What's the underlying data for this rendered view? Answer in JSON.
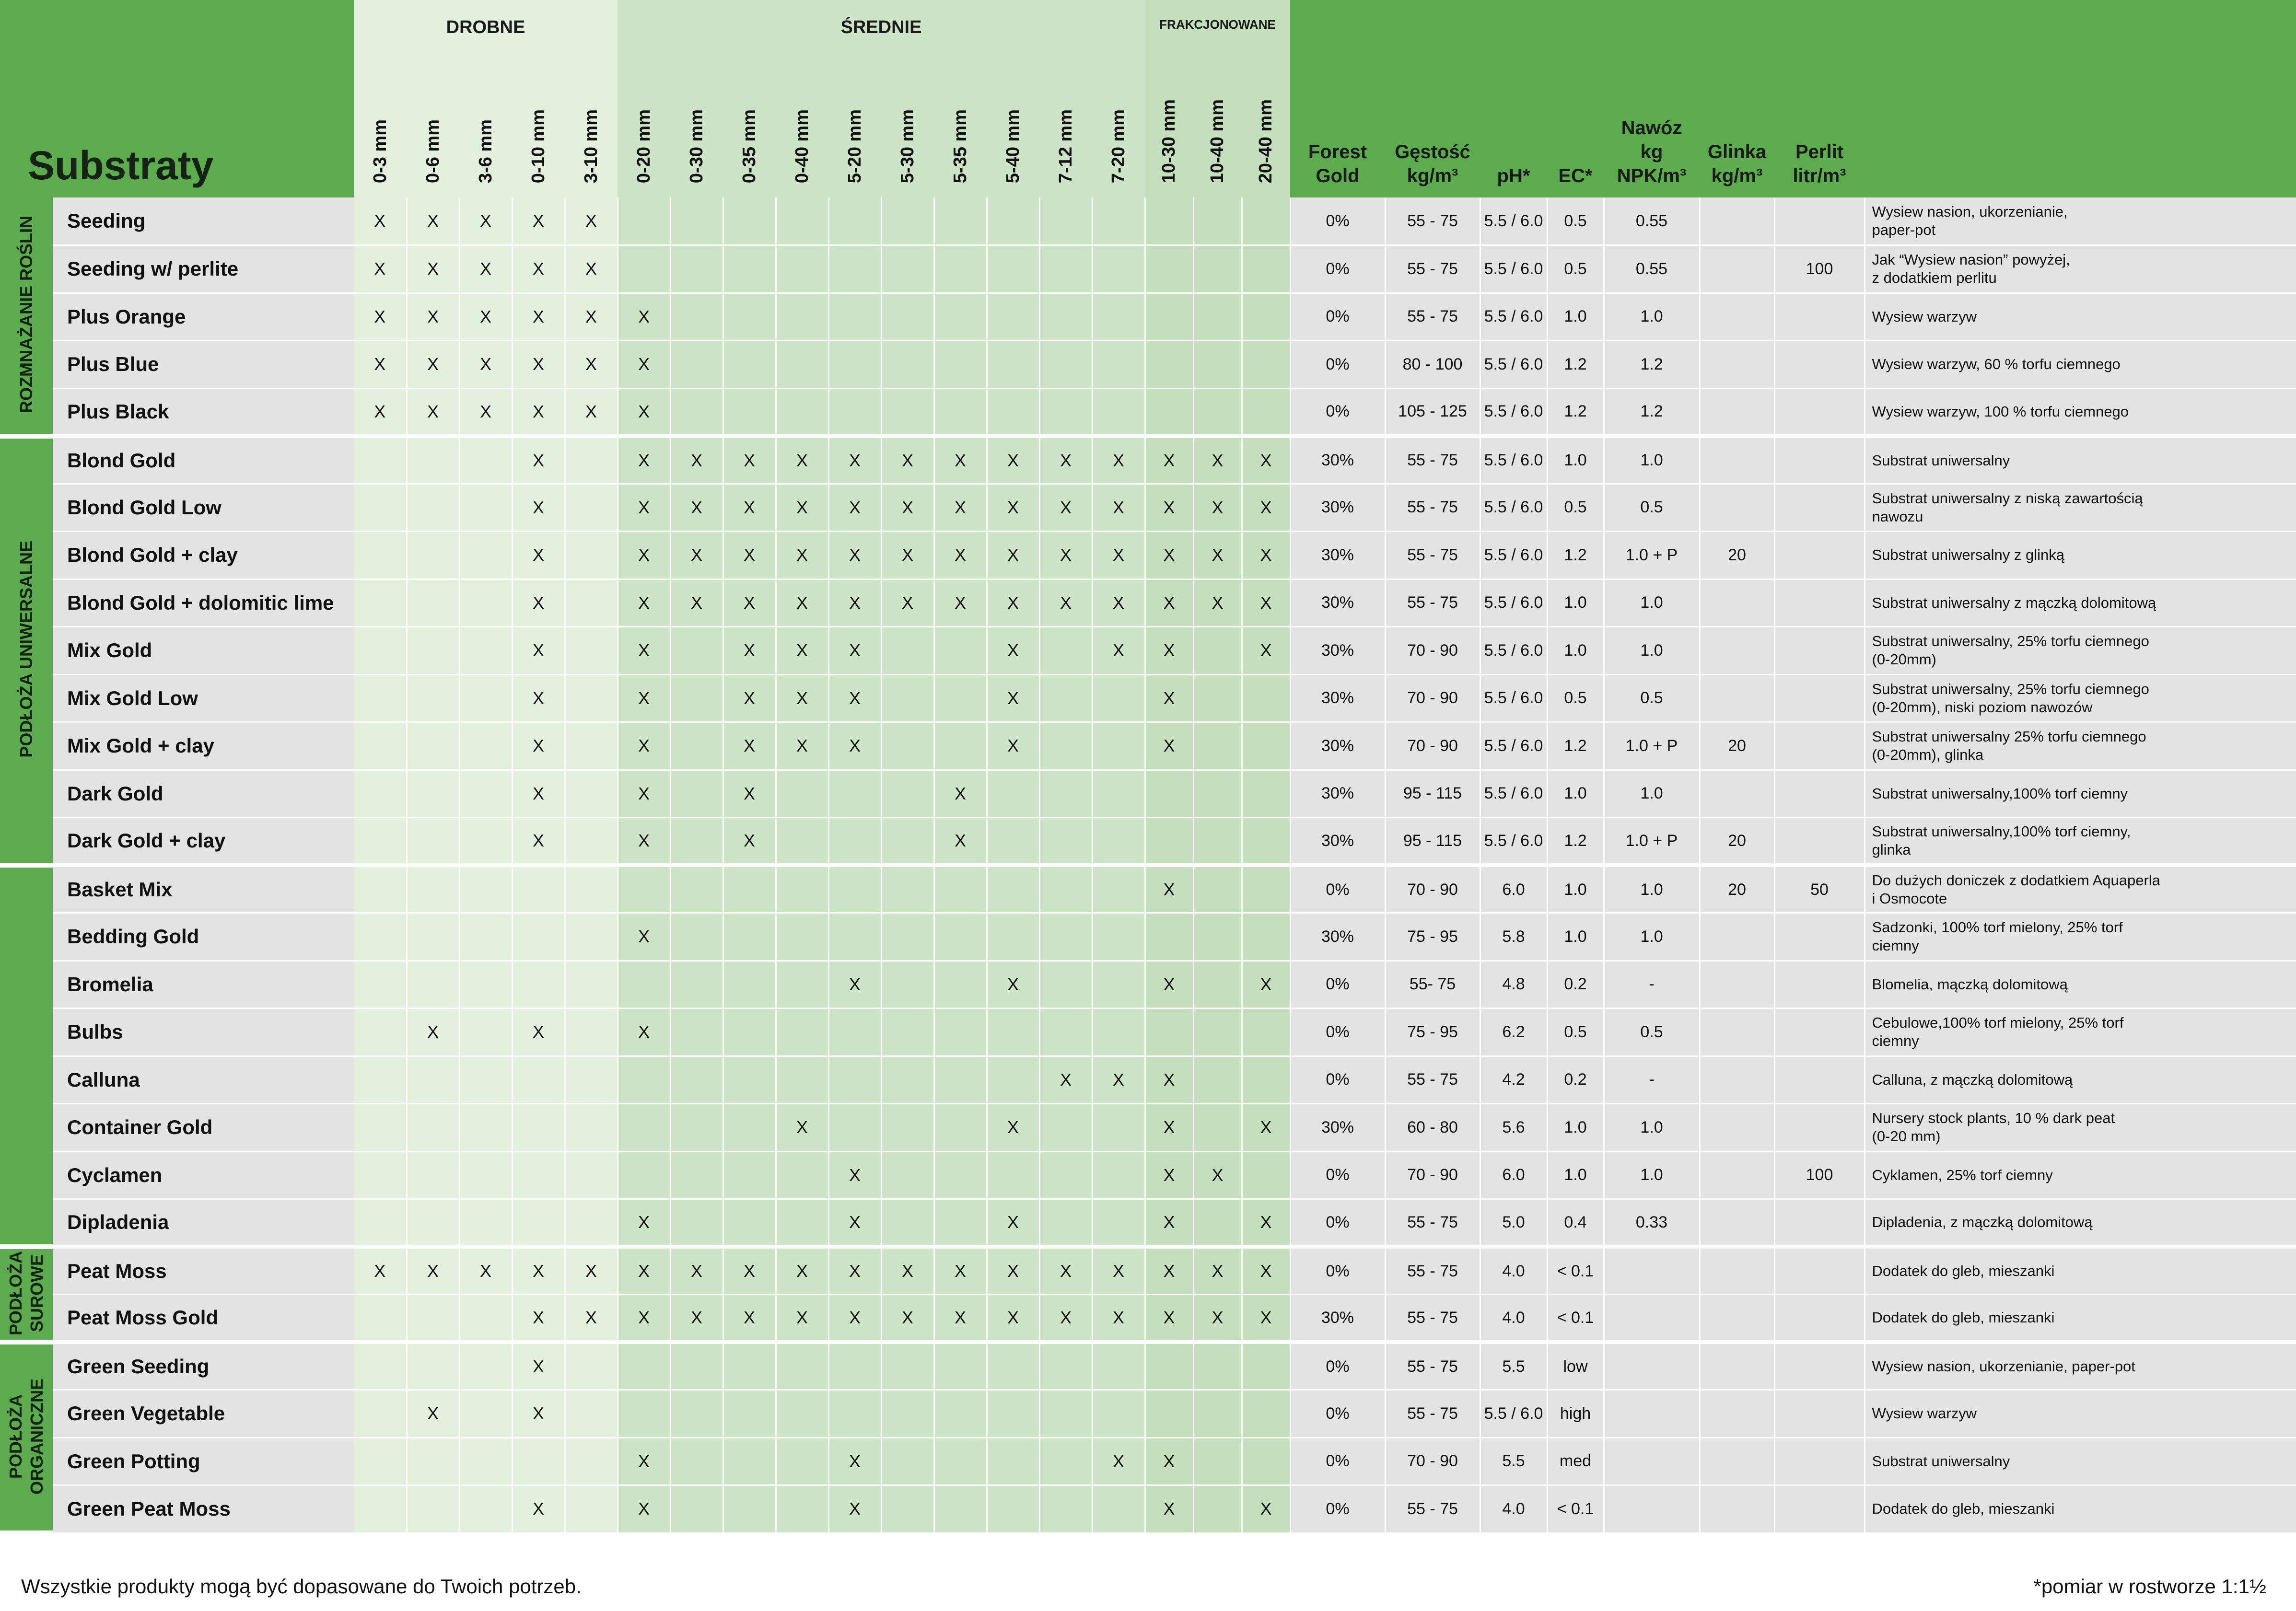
{
  "title": "Substraty",
  "groups": {
    "drobne": "DROBNE",
    "srednie": "ŚREDNIE",
    "frakcjonowane": "FRAKCJONOWANE"
  },
  "sizes": [
    "0-3 mm",
    "0-6 mm",
    "3-6 mm",
    "0-10 mm",
    "3-10 mm",
    "0-20 mm",
    "0-30 mm",
    "0-35 mm",
    "0-40 mm",
    "5-20 mm",
    "5-30 mm",
    "5-35 mm",
    "5-40 mm",
    "7-12 mm",
    "7-20 mm",
    "10-30 mm",
    "10-40 mm",
    "20-40 mm"
  ],
  "prop_headers": [
    "Forest\nGold",
    "Gęstość\nkg/m³",
    "pH*",
    "EC*",
    "Nawóz\nkg NPK/m³",
    "Glinka\nkg/m³",
    "Perlit\nlitr/m³"
  ],
  "categories": [
    {
      "label": "ROZMNAŻANIE ROŚLIN",
      "rows": [
        {
          "name": "Seeding",
          "x": "XXXXX.............",
          "fg": "0%",
          "density": "55 - 75",
          "ph": "5.5 / 6.0",
          "ec": "0.5",
          "npk": "0.55",
          "clay": "",
          "perlite": "",
          "desc": "Wysiew nasion, ukorzenianie,\npaper-pot"
        },
        {
          "name": "Seeding w/ perlite",
          "x": "XXXXX.............",
          "fg": "0%",
          "density": "55 - 75",
          "ph": "5.5 / 6.0",
          "ec": "0.5",
          "npk": "0.55",
          "clay": "",
          "perlite": "100",
          "desc": "Jak “Wysiew nasion” powyżej,\nz dodatkiem perlitu"
        },
        {
          "name": "Plus Orange",
          "x": "XXXXXX............",
          "fg": "0%",
          "density": "55 - 75",
          "ph": "5.5 / 6.0",
          "ec": "1.0",
          "npk": "1.0",
          "clay": "",
          "perlite": "",
          "desc": "Wysiew warzyw"
        },
        {
          "name": "Plus Blue",
          "x": "XXXXXX............",
          "fg": "0%",
          "density": "80 - 100",
          "ph": "5.5 / 6.0",
          "ec": "1.2",
          "npk": "1.2",
          "clay": "",
          "perlite": "",
          "desc": "Wysiew warzyw, 60 % torfu ciemnego"
        },
        {
          "name": "Plus Black",
          "x": "XXXXXX............",
          "fg": "0%",
          "density": "105 - 125",
          "ph": "5.5 / 6.0",
          "ec": "1.2",
          "npk": "1.2",
          "clay": "",
          "perlite": "",
          "desc": "Wysiew warzyw, 100 % torfu ciemnego"
        }
      ]
    },
    {
      "label": "PODŁOŻA UNIWERSALNE",
      "rows": [
        {
          "name": "Blond Gold",
          "x": "...X.XXXXXXXXXXXXX",
          "fg": "30%",
          "density": "55 - 75",
          "ph": "5.5 / 6.0",
          "ec": "1.0",
          "npk": "1.0",
          "clay": "",
          "perlite": "",
          "desc": "Substrat uniwersalny"
        },
        {
          "name": "Blond Gold Low",
          "x": "...X.XXXXXXXXXXXXX",
          "fg": "30%",
          "density": "55 - 75",
          "ph": "5.5 / 6.0",
          "ec": "0.5",
          "npk": "0.5",
          "clay": "",
          "perlite": "",
          "desc": "Substrat uniwersalny z niską zawartością\nnawozu"
        },
        {
          "name": "Blond Gold + clay",
          "x": "...X.XXXXXXXXXXXXX",
          "fg": "30%",
          "density": "55 - 75",
          "ph": "5.5 / 6.0",
          "ec": "1.2",
          "npk": "1.0 + P",
          "clay": "20",
          "perlite": "",
          "desc": "Substrat uniwersalny z glinką"
        },
        {
          "name": "Blond Gold + dolomitic lime",
          "x": "...X.XXXXXXXXXXXXX",
          "fg": "30%",
          "density": "55 - 75",
          "ph": "5.5 / 6.0",
          "ec": "1.0",
          "npk": "1.0",
          "clay": "",
          "perlite": "",
          "desc": "Substrat uniwersalny z mączką dolomitową"
        },
        {
          "name": "Mix Gold",
          "x": "...X.X.XXX..X.XX.X",
          "fg": "30%",
          "density": "70 - 90",
          "ph": "5.5 / 6.0",
          "ec": "1.0",
          "npk": "1.0",
          "clay": "",
          "perlite": "",
          "desc": "Substrat uniwersalny, 25% torfu ciemnego\n(0-20mm)"
        },
        {
          "name": "Mix Gold Low",
          "x": "...X.X.XXX..X..X..",
          "fg": "30%",
          "density": "70 - 90",
          "ph": "5.5 / 6.0",
          "ec": "0.5",
          "npk": "0.5",
          "clay": "",
          "perlite": "",
          "desc": "Substrat uniwersalny, 25% torfu ciemnego\n(0-20mm), niski poziom nawozów"
        },
        {
          "name": "Mix Gold + clay",
          "x": "...X.X.XXX..X..X..",
          "fg": "30%",
          "density": "70 - 90",
          "ph": "5.5 / 6.0",
          "ec": "1.2",
          "npk": "1.0 + P",
          "clay": "20",
          "perlite": "",
          "desc": "Substrat uniwersalny 25% torfu ciemnego\n(0-20mm), glinka"
        },
        {
          "name": "Dark Gold",
          "x": "...X.X.X...X......",
          "fg": "30%",
          "density": "95 - 115",
          "ph": "5.5 / 6.0",
          "ec": "1.0",
          "npk": "1.0",
          "clay": "",
          "perlite": "",
          "desc": "Substrat uniwersalny,100% torf ciemny"
        },
        {
          "name": "Dark Gold + clay",
          "x": "...X.X.X...X......",
          "fg": "30%",
          "density": "95 - 115",
          "ph": "5.5 / 6.0",
          "ec": "1.2",
          "npk": "1.0 + P",
          "clay": "20",
          "perlite": "",
          "desc": "Substrat uniwersalny,100% torf ciemny,\nglinka"
        }
      ]
    },
    {
      "label": "",
      "rows": [
        {
          "name": "Basket Mix",
          "x": "...............X..",
          "fg": "0%",
          "density": "70 - 90",
          "ph": "6.0",
          "ec": "1.0",
          "npk": "1.0",
          "clay": "20",
          "perlite": "50",
          "desc": "Do dużych doniczek z dodatkiem Aquaperla\ni Osmocote"
        },
        {
          "name": "Bedding Gold",
          "x": ".....X............",
          "fg": "30%",
          "density": "75 - 95",
          "ph": "5.8",
          "ec": "1.0",
          "npk": "1.0",
          "clay": "",
          "perlite": "",
          "desc": "Sadzonki, 100% torf mielony, 25% torf\nciemny"
        },
        {
          "name": "Bromelia",
          "x": ".........X..X..X.X",
          "fg": "0%",
          "density": "55- 75",
          "ph": "4.8",
          "ec": "0.2",
          "npk": "-",
          "clay": "",
          "perlite": "",
          "desc": "Blomelia, mączką dolomitową"
        },
        {
          "name": "Bulbs",
          "x": ".X.X.X............",
          "fg": "0%",
          "density": "75 - 95",
          "ph": "6.2",
          "ec": "0.5",
          "npk": "0.5",
          "clay": "",
          "perlite": "",
          "desc": "Cebulowe,100% torf mielony, 25% torf\nciemny"
        },
        {
          "name": "Calluna",
          "x": ".............XXX..",
          "fg": "0%",
          "density": "55 - 75",
          "ph": "4.2",
          "ec": "0.2",
          "npk": "-",
          "clay": "",
          "perlite": "",
          "desc": "Calluna, z mączką dolomitową"
        },
        {
          "name": "Container Gold",
          "x": "........X...X..X.X",
          "fg": "30%",
          "density": "60 - 80",
          "ph": "5.6",
          "ec": "1.0",
          "npk": "1.0",
          "clay": "",
          "perlite": "",
          "desc": "Nursery stock plants, 10 % dark peat\n(0-20 mm)"
        },
        {
          "name": "Cyclamen",
          "x": ".........X.....XX.",
          "fg": "0%",
          "density": "70 - 90",
          "ph": "6.0",
          "ec": "1.0",
          "npk": "1.0",
          "clay": "",
          "perlite": "100",
          "desc": "Cyklamen, 25% torf ciemny"
        },
        {
          "name": "Dipladenia",
          "x": ".....X...X..X..X.X",
          "fg": "0%",
          "density": "55 - 75",
          "ph": "5.0",
          "ec": "0.4",
          "npk": "0.33",
          "clay": "",
          "perlite": "",
          "desc": "Dipladenia, z mączką dolomitową"
        }
      ]
    },
    {
      "label": "PODŁOŻA\nSUROWE",
      "rows": [
        {
          "name": "Peat Moss",
          "x": "XXXXXXXXXXXXXXXXXX",
          "fg": "0%",
          "density": "55 - 75",
          "ph": "4.0",
          "ec": "< 0.1",
          "npk": "",
          "clay": "",
          "perlite": "",
          "desc": "Dodatek do gleb, mieszanki"
        },
        {
          "name": "Peat Moss Gold",
          "x": "...XXXXXXXXXXXXXXX",
          "fg": "30%",
          "density": "55 - 75",
          "ph": "4.0",
          "ec": "< 0.1",
          "npk": "",
          "clay": "",
          "perlite": "",
          "desc": "Dodatek do gleb, mieszanki"
        }
      ]
    },
    {
      "label": "PODŁOŻA\nORGANICZNE",
      "rows": [
        {
          "name": "Green Seeding",
          "x": "...X..............",
          "fg": "0%",
          "density": "55 - 75",
          "ph": "5.5",
          "ec": "low",
          "npk": "",
          "clay": "",
          "perlite": "",
          "desc": "Wysiew nasion, ukorzenianie, paper-pot"
        },
        {
          "name": "Green Vegetable",
          "x": ".X.X..............",
          "fg": "0%",
          "density": "55 - 75",
          "ph": "5.5 / 6.0",
          "ec": "high",
          "npk": "",
          "clay": "",
          "perlite": "",
          "desc": "Wysiew warzyw"
        },
        {
          "name": "Green Potting",
          "x": ".....X...X....XX..",
          "fg": "0%",
          "density": "70 - 90",
          "ph": "5.5",
          "ec": "med",
          "npk": "",
          "clay": "",
          "perlite": "",
          "desc": "Substrat uniwersalny"
        },
        {
          "name": "Green Peat Moss",
          "x": "...X.X...X.....X.X",
          "fg": "0%",
          "density": "55 - 75",
          "ph": "4.0",
          "ec": "< 0.1",
          "npk": "",
          "clay": "",
          "perlite": "",
          "desc": "Dodatek do gleb, mieszanki"
        }
      ]
    }
  ],
  "mark": "X",
  "footnote_left": "Wszystkie produkty mogą być dopasowane do Twoich potrzeb.",
  "footnote_right": "*pomiar w rostworze 1:1½"
}
